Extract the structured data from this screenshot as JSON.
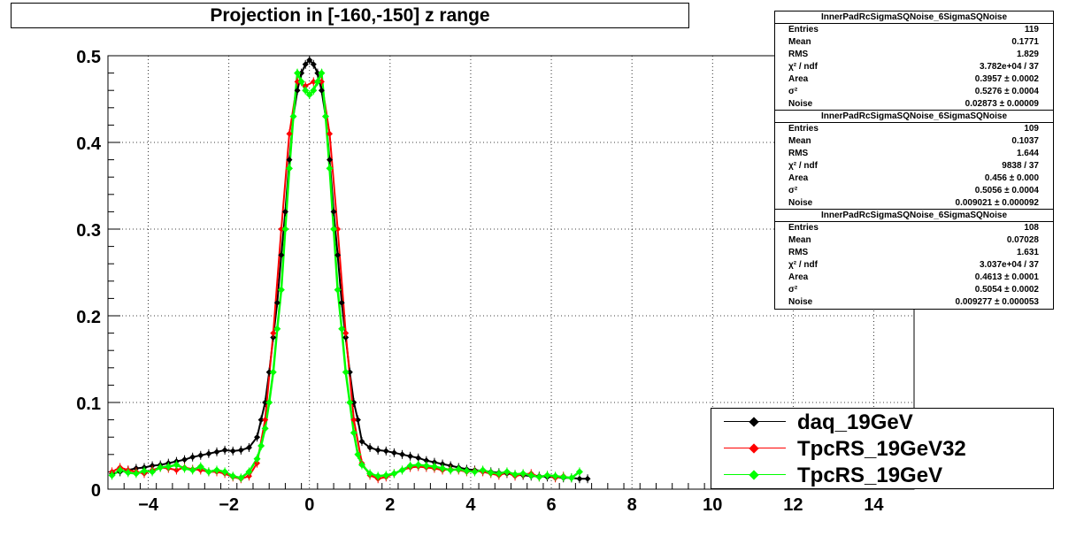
{
  "title": "Projection in [-160,-150] z range",
  "colors": {
    "daq": "#000000",
    "rs32": "#ff0000",
    "rs": "#00ff00"
  },
  "stats_boxes": [
    {
      "name": "InnerPadRcSigmaSQNoise_6SigmaSQNoise",
      "rows": [
        {
          "label": "Entries",
          "value": "119"
        },
        {
          "label": "Mean",
          "value": "0.1771"
        },
        {
          "label": "RMS",
          "value": "1.829"
        },
        {
          "label": "χ² / ndf",
          "value": "3.782e+04 / 37"
        },
        {
          "label": "Area",
          "value": "0.3957 ± 0.0002"
        },
        {
          "label": "σ²",
          "value": "0.5276 ± 0.0004"
        },
        {
          "label": "Noise",
          "value": "0.02873 ± 0.00009"
        }
      ]
    },
    {
      "name": "InnerPadRcSigmaSQNoise_6SigmaSQNoise",
      "rows": [
        {
          "label": "Entries",
          "value": "109"
        },
        {
          "label": "Mean",
          "value": "0.1037"
        },
        {
          "label": "RMS",
          "value": "1.644"
        },
        {
          "label": "χ² / ndf",
          "value": "9838 / 37"
        },
        {
          "label": "Area",
          "value": "0.456 ± 0.000"
        },
        {
          "label": "σ²",
          "value": "0.5056 ± 0.0004"
        },
        {
          "label": "Noise",
          "value": "0.009021 ± 0.000092"
        }
      ]
    },
    {
      "name": "InnerPadRcSigmaSQNoise_6SigmaSQNoise",
      "rows": [
        {
          "label": "Entries",
          "value": "108"
        },
        {
          "label": "Mean",
          "value": "0.07028"
        },
        {
          "label": "RMS",
          "value": "1.631"
        },
        {
          "label": "χ² / ndf",
          "value": "3.037e+04 / 37"
        },
        {
          "label": "Area",
          "value": "0.4613 ± 0.0001"
        },
        {
          "label": "σ²",
          "value": "0.5054 ± 0.0002"
        },
        {
          "label": "Noise",
          "value": "0.009277 ± 0.000053"
        }
      ]
    }
  ],
  "chart_data": {
    "type": "scatter",
    "title": "Projection in [-160,-150] z range",
    "xlabel": "",
    "ylabel": "",
    "xlim": [
      -5,
      15
    ],
    "ylim": [
      0,
      0.5
    ],
    "grid": true,
    "legend_position": "bottom-right",
    "x_ticks": [
      -4,
      -2,
      0,
      2,
      4,
      6,
      8,
      10,
      12,
      14
    ],
    "x_tick_labels": [
      "−4",
      "−2",
      "0",
      "2",
      "4",
      "6",
      "8",
      "10",
      "12",
      "14"
    ],
    "y_ticks": [
      0,
      0.1,
      0.2,
      0.3,
      0.4,
      0.5
    ],
    "y_tick_labels": [
      "0",
      "0.1",
      "0.2",
      "0.3",
      "0.4",
      "0.5"
    ],
    "series": [
      {
        "name": "daq_19GeV",
        "color": "#000000",
        "x": [
          -4.9,
          -4.7,
          -4.5,
          -4.3,
          -4.1,
          -3.9,
          -3.7,
          -3.5,
          -3.3,
          -3.1,
          -2.9,
          -2.7,
          -2.5,
          -2.3,
          -2.1,
          -1.9,
          -1.7,
          -1.5,
          -1.3,
          -1.2,
          -1.1,
          -1.0,
          -0.9,
          -0.8,
          -0.7,
          -0.6,
          -0.5,
          -0.4,
          -0.3,
          -0.2,
          -0.1,
          0.0,
          0.1,
          0.2,
          0.3,
          0.4,
          0.5,
          0.6,
          0.7,
          0.8,
          0.9,
          1.0,
          1.1,
          1.2,
          1.3,
          1.5,
          1.7,
          1.9,
          2.1,
          2.3,
          2.5,
          2.7,
          2.9,
          3.1,
          3.3,
          3.5,
          3.7,
          3.9,
          4.1,
          4.3,
          4.5,
          4.7,
          4.9,
          5.1,
          5.3,
          5.5,
          5.7,
          5.9,
          6.1,
          6.3,
          6.5,
          6.7,
          6.9
        ],
        "y": [
          0.018,
          0.02,
          0.022,
          0.024,
          0.025,
          0.027,
          0.028,
          0.03,
          0.032,
          0.034,
          0.037,
          0.039,
          0.041,
          0.043,
          0.045,
          0.044,
          0.045,
          0.048,
          0.06,
          0.08,
          0.1,
          0.135,
          0.175,
          0.215,
          0.27,
          0.32,
          0.38,
          0.43,
          0.46,
          0.48,
          0.49,
          0.495,
          0.49,
          0.48,
          0.46,
          0.43,
          0.38,
          0.32,
          0.27,
          0.215,
          0.175,
          0.135,
          0.1,
          0.08,
          0.055,
          0.048,
          0.045,
          0.044,
          0.042,
          0.04,
          0.038,
          0.036,
          0.033,
          0.031,
          0.029,
          0.027,
          0.025,
          0.023,
          0.022,
          0.021,
          0.02,
          0.019,
          0.018,
          0.017,
          0.016,
          0.015,
          0.015,
          0.014,
          0.014,
          0.013,
          0.013,
          0.012,
          0.012
        ]
      },
      {
        "name": "TpcRS_19GeV32",
        "color": "#ff0000",
        "x": [
          -4.9,
          -4.7,
          -4.5,
          -4.3,
          -4.1,
          -3.9,
          -3.7,
          -3.5,
          -3.3,
          -3.1,
          -2.9,
          -2.7,
          -2.5,
          -2.3,
          -2.1,
          -1.9,
          -1.7,
          -1.5,
          -1.3,
          -1.1,
          -0.9,
          -0.7,
          -0.5,
          -0.3,
          -0.1,
          0.1,
          0.3,
          0.5,
          0.7,
          0.9,
          1.1,
          1.3,
          1.5,
          1.7,
          1.9,
          2.1,
          2.3,
          2.5,
          2.7,
          2.9,
          3.1,
          3.3,
          3.5,
          3.7,
          3.9,
          4.1,
          4.3,
          4.5,
          4.7,
          4.9,
          5.1,
          5.3,
          5.5,
          5.7,
          5.9,
          6.1,
          6.3
        ],
        "y": [
          0.02,
          0.025,
          0.022,
          0.02,
          0.018,
          0.022,
          0.025,
          0.024,
          0.022,
          0.025,
          0.023,
          0.022,
          0.02,
          0.02,
          0.018,
          0.014,
          0.012,
          0.015,
          0.03,
          0.08,
          0.18,
          0.3,
          0.41,
          0.47,
          0.465,
          0.47,
          0.47,
          0.41,
          0.3,
          0.18,
          0.08,
          0.03,
          0.016,
          0.012,
          0.014,
          0.018,
          0.022,
          0.025,
          0.026,
          0.025,
          0.024,
          0.022,
          0.023,
          0.022,
          0.02,
          0.021,
          0.02,
          0.018,
          0.016,
          0.019,
          0.015,
          0.017,
          0.018,
          0.014,
          0.016,
          0.013,
          0.015
        ]
      },
      {
        "name": "TpcRS_19GeV",
        "color": "#00ff00",
        "x": [
          -4.9,
          -4.7,
          -4.5,
          -4.3,
          -4.1,
          -3.9,
          -3.7,
          -3.5,
          -3.3,
          -3.1,
          -2.9,
          -2.7,
          -2.5,
          -2.3,
          -2.1,
          -1.9,
          -1.7,
          -1.5,
          -1.3,
          -1.2,
          -1.1,
          -1.0,
          -0.9,
          -0.8,
          -0.7,
          -0.6,
          -0.5,
          -0.4,
          -0.3,
          -0.2,
          -0.1,
          0.0,
          0.1,
          0.2,
          0.3,
          0.4,
          0.5,
          0.6,
          0.7,
          0.8,
          0.9,
          1.0,
          1.1,
          1.2,
          1.3,
          1.5,
          1.7,
          1.9,
          2.1,
          2.3,
          2.5,
          2.7,
          2.9,
          3.1,
          3.3,
          3.5,
          3.7,
          3.9,
          4.1,
          4.3,
          4.5,
          4.7,
          4.9,
          5.1,
          5.3,
          5.5,
          5.7,
          5.9,
          6.1,
          6.3,
          6.5,
          6.7
        ],
        "y": [
          0.016,
          0.022,
          0.019,
          0.018,
          0.021,
          0.02,
          0.025,
          0.026,
          0.028,
          0.024,
          0.022,
          0.026,
          0.02,
          0.022,
          0.02,
          0.015,
          0.013,
          0.02,
          0.035,
          0.05,
          0.07,
          0.1,
          0.135,
          0.185,
          0.23,
          0.3,
          0.37,
          0.43,
          0.48,
          0.47,
          0.46,
          0.455,
          0.46,
          0.47,
          0.48,
          0.43,
          0.37,
          0.3,
          0.23,
          0.185,
          0.135,
          0.1,
          0.065,
          0.04,
          0.028,
          0.018,
          0.015,
          0.016,
          0.018,
          0.022,
          0.027,
          0.028,
          0.027,
          0.026,
          0.024,
          0.022,
          0.023,
          0.021,
          0.02,
          0.022,
          0.019,
          0.018,
          0.02,
          0.017,
          0.018,
          0.016,
          0.014,
          0.016,
          0.015,
          0.014,
          0.013,
          0.02
        ]
      }
    ]
  }
}
